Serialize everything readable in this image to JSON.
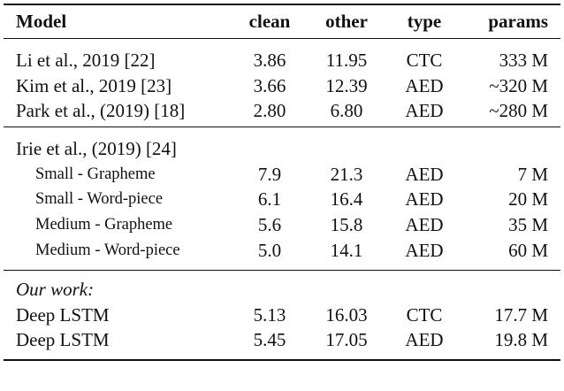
{
  "table": {
    "header": [
      "Model",
      "clean",
      "other",
      "type",
      "params"
    ],
    "groups": [
      {
        "rows": [
          [
            "Li et al., 2019 [22]",
            "3.86",
            "11.95",
            "CTC",
            "333 M"
          ],
          [
            "Kim et al., 2019 [23]",
            "3.66",
            "12.39",
            "AED",
            "~320 M"
          ],
          [
            "Park et al., (2019) [18]",
            "2.80",
            "6.80",
            "AED",
            "~280 M"
          ]
        ]
      },
      {
        "label": "Irie et al., (2019) [24]",
        "rows": [
          [
            "Small - Grapheme",
            "7.9",
            "21.3",
            "AED",
            "7 M"
          ],
          [
            "Small - Word-piece",
            "6.1",
            "16.4",
            "AED",
            "20 M"
          ],
          [
            "Medium - Grapheme",
            "5.6",
            "15.8",
            "AED",
            "35 M"
          ],
          [
            "Medium - Word-piece",
            "5.0",
            "14.1",
            "AED",
            "60 M"
          ]
        ]
      },
      {
        "label": "Our work:",
        "rows": [
          [
            "Deep LSTM",
            "5.13",
            "16.03",
            "CTC",
            "17.7 M"
          ],
          [
            "Deep LSTM",
            "5.45",
            "17.05",
            "AED",
            "19.8 M"
          ]
        ]
      }
    ]
  }
}
